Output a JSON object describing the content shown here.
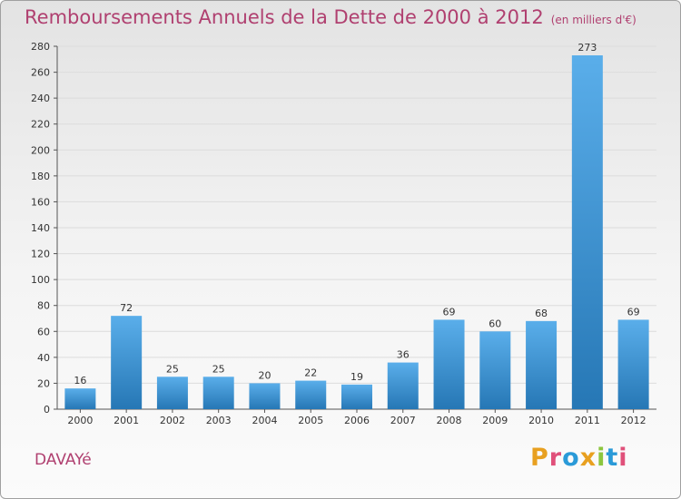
{
  "title": "Remboursements Annuels de la Dette de 2000 à 2012",
  "unit_label": "(en milliers d'€)",
  "commune": "DAVAYé",
  "logo_text": "Proxiti",
  "logo_colors": [
    "#e8a020",
    "#e0507a",
    "#2a9ad8",
    "#e8a020",
    "#8cc63e",
    "#2a9ad8",
    "#e0507a"
  ],
  "colors": {
    "title": "#b04070",
    "bar_light": "#5aaeea",
    "bar_dark": "#2677b5",
    "grid": "#dcdcdc"
  },
  "chart_data": {
    "type": "bar",
    "categories": [
      "2000",
      "2001",
      "2002",
      "2003",
      "2004",
      "2005",
      "2006",
      "2007",
      "2008",
      "2009",
      "2010",
      "2011",
      "2012"
    ],
    "values": [
      16,
      72,
      25,
      25,
      20,
      22,
      19,
      36,
      69,
      60,
      68,
      273,
      69
    ],
    "title": "Remboursements Annuels de la Dette de 2000 à 2012",
    "ylabel": "",
    "xlabel": "",
    "ylim": [
      0,
      280
    ],
    "yticks": [
      0,
      20,
      40,
      60,
      80,
      100,
      120,
      140,
      160,
      180,
      200,
      220,
      240,
      260,
      280
    ],
    "grid": true,
    "data_labels": true
  }
}
